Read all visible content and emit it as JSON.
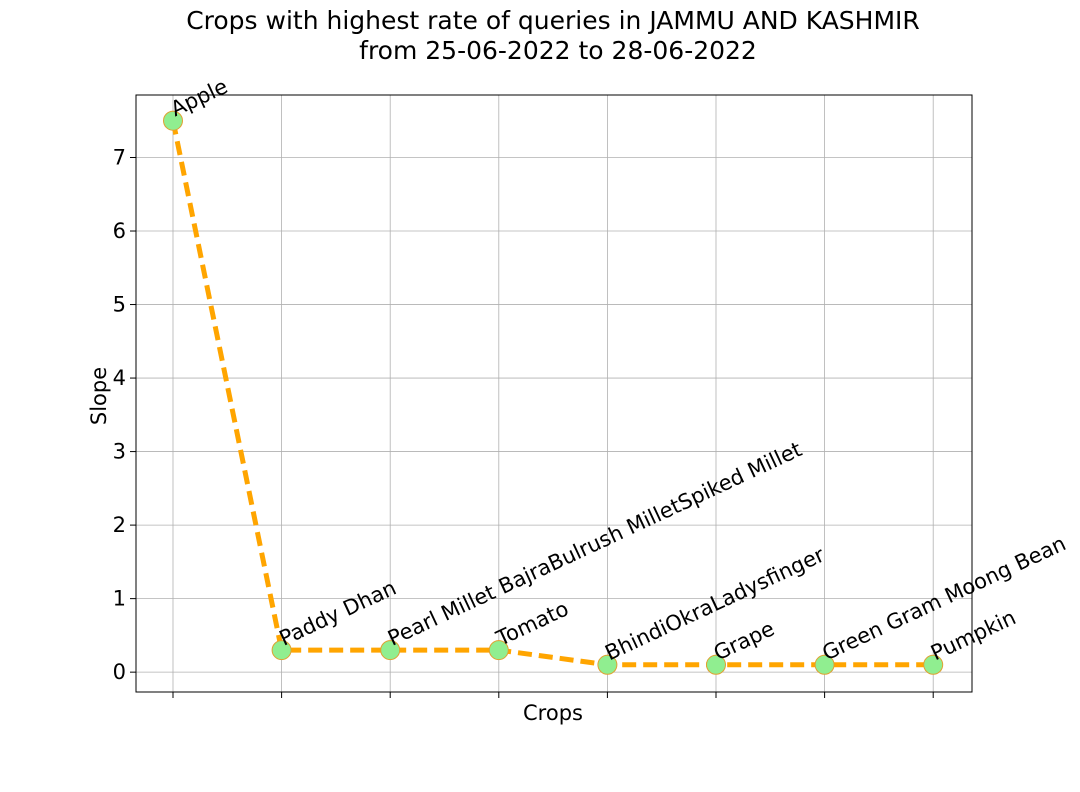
{
  "chart_data": {
    "type": "line",
    "title_line1": "Crops with highest rate of queries in JAMMU AND KASHMIR",
    "title_line2": "from 25-06-2022 to 28-06-2022",
    "xlabel": "Crops",
    "ylabel": "Slope",
    "categories": [
      "Apple",
      "Paddy Dhan",
      "Pearl Millet BajraBulrush MilletSpiked Millet",
      "Tomato",
      "BhindiOkraLadysfinger",
      "Grape",
      "Green Gram Moong Bean",
      "Pumpkin"
    ],
    "values": [
      7.5,
      0.3,
      0.3,
      0.3,
      0.1,
      0.1,
      0.1,
      0.1
    ],
    "yticks": [
      "0",
      "1",
      "2",
      "3",
      "4",
      "5",
      "6",
      "7"
    ],
    "ylim": [
      -0.27,
      7.85
    ],
    "grid": true,
    "line_color": "#ffa500",
    "marker_color": "#90ee90",
    "marker_edge_color": "#e0a030"
  }
}
